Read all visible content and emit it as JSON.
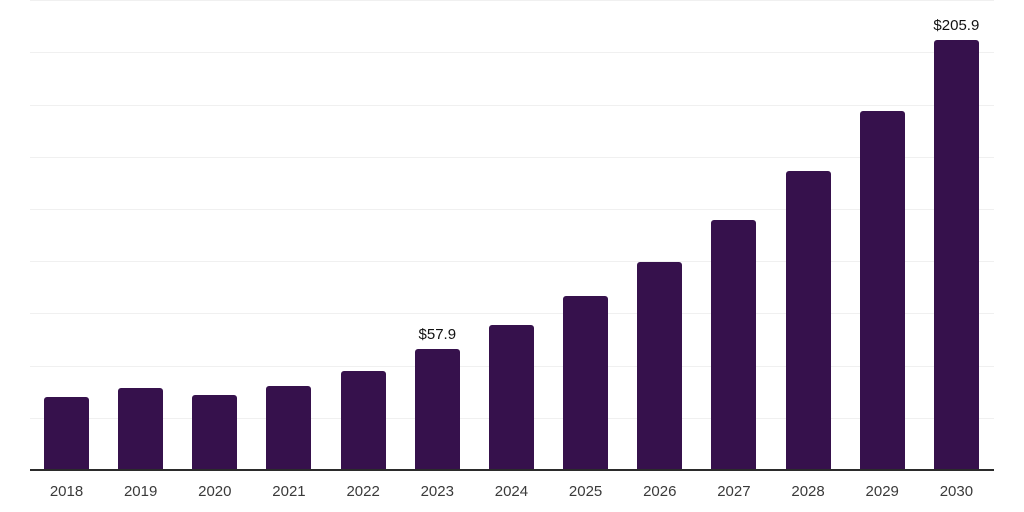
{
  "chart_data": {
    "type": "bar",
    "categories": [
      "2018",
      "2019",
      "2020",
      "2021",
      "2022",
      "2023",
      "2024",
      "2025",
      "2026",
      "2027",
      "2028",
      "2029",
      "2030"
    ],
    "values": [
      35.0,
      39.4,
      35.7,
      40.4,
      47.5,
      57.9,
      69.4,
      83.2,
      99.7,
      119.6,
      143.3,
      171.8,
      205.9
    ],
    "bar_labels": [
      "",
      "",
      "",
      "",
      "",
      "$57.9",
      "",
      "",
      "",
      "",
      "",
      "",
      "$205.9"
    ],
    "title": "",
    "xlabel": "",
    "ylabel": "",
    "ylim": [
      0,
      225
    ],
    "gridline_step": 25,
    "grid": "horizontal-only",
    "legend": "none",
    "y_tick_labels_visible": false,
    "colors": {
      "bar": "#36114C",
      "axis_line": "#2b2b2b",
      "gridline": "#f0f0f0",
      "tick_label": "#3a3a3a",
      "data_label": "#111111",
      "background": "#ffffff"
    }
  }
}
